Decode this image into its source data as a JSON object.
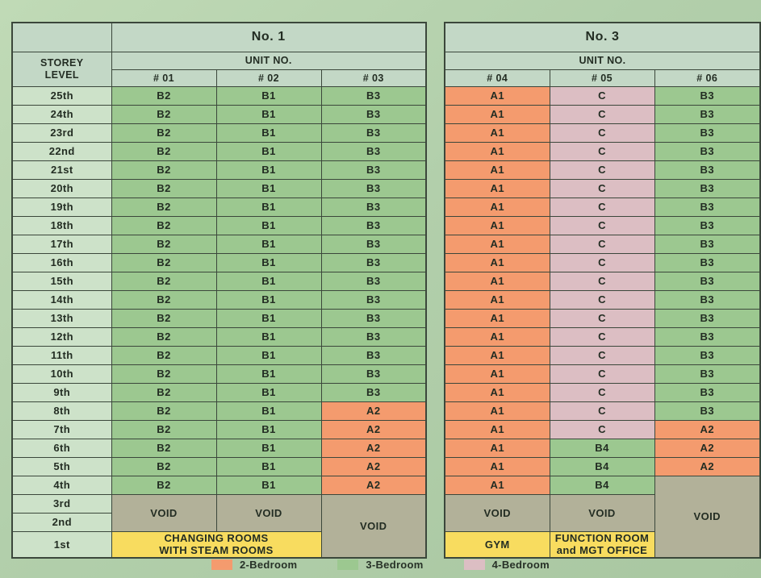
{
  "page": {
    "background": "#b2cfab",
    "border_color": "#3b473b",
    "text_color": "#232d23"
  },
  "colors": {
    "orange": "#f49b6e",
    "green": "#9cc890",
    "pink": "#dcbec3",
    "void": "#b2b199",
    "yellow": "#f8dc5f",
    "header": "#c3d8c6",
    "storey": "#cde2c9"
  },
  "tables": [
    {
      "title": "No. 1",
      "unit_no_label": "UNIT NO.",
      "storey_header": "STOREY\nLEVEL",
      "columns": [
        "# 01",
        "# 02",
        "# 03"
      ],
      "rows": [
        {
          "storey": "25th",
          "cells": [
            {
              "t": "B2",
              "c": "g"
            },
            {
              "t": "B1",
              "c": "g"
            },
            {
              "t": "B3",
              "c": "g"
            }
          ]
        },
        {
          "storey": "24th",
          "cells": [
            {
              "t": "B2",
              "c": "g"
            },
            {
              "t": "B1",
              "c": "g"
            },
            {
              "t": "B3",
              "c": "g"
            }
          ]
        },
        {
          "storey": "23rd",
          "cells": [
            {
              "t": "B2",
              "c": "g"
            },
            {
              "t": "B1",
              "c": "g"
            },
            {
              "t": "B3",
              "c": "g"
            }
          ]
        },
        {
          "storey": "22nd",
          "cells": [
            {
              "t": "B2",
              "c": "g"
            },
            {
              "t": "B1",
              "c": "g"
            },
            {
              "t": "B3",
              "c": "g"
            }
          ]
        },
        {
          "storey": "21st",
          "cells": [
            {
              "t": "B2",
              "c": "g"
            },
            {
              "t": "B1",
              "c": "g"
            },
            {
              "t": "B3",
              "c": "g"
            }
          ]
        },
        {
          "storey": "20th",
          "cells": [
            {
              "t": "B2",
              "c": "g"
            },
            {
              "t": "B1",
              "c": "g"
            },
            {
              "t": "B3",
              "c": "g"
            }
          ]
        },
        {
          "storey": "19th",
          "cells": [
            {
              "t": "B2",
              "c": "g"
            },
            {
              "t": "B1",
              "c": "g"
            },
            {
              "t": "B3",
              "c": "g"
            }
          ]
        },
        {
          "storey": "18th",
          "cells": [
            {
              "t": "B2",
              "c": "g"
            },
            {
              "t": "B1",
              "c": "g"
            },
            {
              "t": "B3",
              "c": "g"
            }
          ]
        },
        {
          "storey": "17th",
          "cells": [
            {
              "t": "B2",
              "c": "g"
            },
            {
              "t": "B1",
              "c": "g"
            },
            {
              "t": "B3",
              "c": "g"
            }
          ]
        },
        {
          "storey": "16th",
          "cells": [
            {
              "t": "B2",
              "c": "g"
            },
            {
              "t": "B1",
              "c": "g"
            },
            {
              "t": "B3",
              "c": "g"
            }
          ]
        },
        {
          "storey": "15th",
          "cells": [
            {
              "t": "B2",
              "c": "g"
            },
            {
              "t": "B1",
              "c": "g"
            },
            {
              "t": "B3",
              "c": "g"
            }
          ]
        },
        {
          "storey": "14th",
          "cells": [
            {
              "t": "B2",
              "c": "g"
            },
            {
              "t": "B1",
              "c": "g"
            },
            {
              "t": "B3",
              "c": "g"
            }
          ]
        },
        {
          "storey": "13th",
          "cells": [
            {
              "t": "B2",
              "c": "g"
            },
            {
              "t": "B1",
              "c": "g"
            },
            {
              "t": "B3",
              "c": "g"
            }
          ]
        },
        {
          "storey": "12th",
          "cells": [
            {
              "t": "B2",
              "c": "g"
            },
            {
              "t": "B1",
              "c": "g"
            },
            {
              "t": "B3",
              "c": "g"
            }
          ]
        },
        {
          "storey": "11th",
          "cells": [
            {
              "t": "B2",
              "c": "g"
            },
            {
              "t": "B1",
              "c": "g"
            },
            {
              "t": "B3",
              "c": "g"
            }
          ]
        },
        {
          "storey": "10th",
          "cells": [
            {
              "t": "B2",
              "c": "g"
            },
            {
              "t": "B1",
              "c": "g"
            },
            {
              "t": "B3",
              "c": "g"
            }
          ]
        },
        {
          "storey": "9th",
          "cells": [
            {
              "t": "B2",
              "c": "g"
            },
            {
              "t": "B1",
              "c": "g"
            },
            {
              "t": "B3",
              "c": "g"
            }
          ]
        },
        {
          "storey": "8th",
          "cells": [
            {
              "t": "B2",
              "c": "g"
            },
            {
              "t": "B1",
              "c": "g"
            },
            {
              "t": "A2",
              "c": "o"
            }
          ]
        },
        {
          "storey": "7th",
          "cells": [
            {
              "t": "B2",
              "c": "g"
            },
            {
              "t": "B1",
              "c": "g"
            },
            {
              "t": "A2",
              "c": "o"
            }
          ]
        },
        {
          "storey": "6th",
          "cells": [
            {
              "t": "B2",
              "c": "g"
            },
            {
              "t": "B1",
              "c": "g"
            },
            {
              "t": "A2",
              "c": "o"
            }
          ]
        },
        {
          "storey": "5th",
          "cells": [
            {
              "t": "B2",
              "c": "g"
            },
            {
              "t": "B1",
              "c": "g"
            },
            {
              "t": "A2",
              "c": "o"
            }
          ]
        },
        {
          "storey": "4th",
          "cells": [
            {
              "t": "B2",
              "c": "g"
            },
            {
              "t": "B1",
              "c": "g"
            },
            {
              "t": "A2",
              "c": "o"
            }
          ]
        },
        {
          "storey": "3rd",
          "cells": [
            {
              "t": "VOID",
              "c": "v",
              "rs": 2
            },
            {
              "t": "VOID",
              "c": "v",
              "rs": 2
            },
            {
              "t": "VOID",
              "c": "v",
              "rs": 3
            }
          ]
        },
        {
          "storey": "2nd",
          "cells": []
        },
        {
          "storey": "1st",
          "tall": true,
          "cells": [
            {
              "t": "CHANGING ROOMS\nWITH STEAM ROOMS",
              "c": "y",
              "cs": 2
            }
          ]
        }
      ]
    },
    {
      "title": "No. 3",
      "unit_no_label": "UNIT NO.",
      "columns": [
        "# 04",
        "# 05",
        "# 06"
      ],
      "rows": [
        {
          "cells": [
            {
              "t": "A1",
              "c": "o"
            },
            {
              "t": "C",
              "c": "p"
            },
            {
              "t": "B3",
              "c": "g"
            }
          ]
        },
        {
          "cells": [
            {
              "t": "A1",
              "c": "o"
            },
            {
              "t": "C",
              "c": "p"
            },
            {
              "t": "B3",
              "c": "g"
            }
          ]
        },
        {
          "cells": [
            {
              "t": "A1",
              "c": "o"
            },
            {
              "t": "C",
              "c": "p"
            },
            {
              "t": "B3",
              "c": "g"
            }
          ]
        },
        {
          "cells": [
            {
              "t": "A1",
              "c": "o"
            },
            {
              "t": "C",
              "c": "p"
            },
            {
              "t": "B3",
              "c": "g"
            }
          ]
        },
        {
          "cells": [
            {
              "t": "A1",
              "c": "o"
            },
            {
              "t": "C",
              "c": "p"
            },
            {
              "t": "B3",
              "c": "g"
            }
          ]
        },
        {
          "cells": [
            {
              "t": "A1",
              "c": "o"
            },
            {
              "t": "C",
              "c": "p"
            },
            {
              "t": "B3",
              "c": "g"
            }
          ]
        },
        {
          "cells": [
            {
              "t": "A1",
              "c": "o"
            },
            {
              "t": "C",
              "c": "p"
            },
            {
              "t": "B3",
              "c": "g"
            }
          ]
        },
        {
          "cells": [
            {
              "t": "A1",
              "c": "o"
            },
            {
              "t": "C",
              "c": "p"
            },
            {
              "t": "B3",
              "c": "g"
            }
          ]
        },
        {
          "cells": [
            {
              "t": "A1",
              "c": "o"
            },
            {
              "t": "C",
              "c": "p"
            },
            {
              "t": "B3",
              "c": "g"
            }
          ]
        },
        {
          "cells": [
            {
              "t": "A1",
              "c": "o"
            },
            {
              "t": "C",
              "c": "p"
            },
            {
              "t": "B3",
              "c": "g"
            }
          ]
        },
        {
          "cells": [
            {
              "t": "A1",
              "c": "o"
            },
            {
              "t": "C",
              "c": "p"
            },
            {
              "t": "B3",
              "c": "g"
            }
          ]
        },
        {
          "cells": [
            {
              "t": "A1",
              "c": "o"
            },
            {
              "t": "C",
              "c": "p"
            },
            {
              "t": "B3",
              "c": "g"
            }
          ]
        },
        {
          "cells": [
            {
              "t": "A1",
              "c": "o"
            },
            {
              "t": "C",
              "c": "p"
            },
            {
              "t": "B3",
              "c": "g"
            }
          ]
        },
        {
          "cells": [
            {
              "t": "A1",
              "c": "o"
            },
            {
              "t": "C",
              "c": "p"
            },
            {
              "t": "B3",
              "c": "g"
            }
          ]
        },
        {
          "cells": [
            {
              "t": "A1",
              "c": "o"
            },
            {
              "t": "C",
              "c": "p"
            },
            {
              "t": "B3",
              "c": "g"
            }
          ]
        },
        {
          "cells": [
            {
              "t": "A1",
              "c": "o"
            },
            {
              "t": "C",
              "c": "p"
            },
            {
              "t": "B3",
              "c": "g"
            }
          ]
        },
        {
          "cells": [
            {
              "t": "A1",
              "c": "o"
            },
            {
              "t": "C",
              "c": "p"
            },
            {
              "t": "B3",
              "c": "g"
            }
          ]
        },
        {
          "cells": [
            {
              "t": "A1",
              "c": "o"
            },
            {
              "t": "C",
              "c": "p"
            },
            {
              "t": "B3",
              "c": "g"
            }
          ]
        },
        {
          "cells": [
            {
              "t": "A1",
              "c": "o"
            },
            {
              "t": "C",
              "c": "p"
            },
            {
              "t": "A2",
              "c": "o"
            }
          ]
        },
        {
          "cells": [
            {
              "t": "A1",
              "c": "o"
            },
            {
              "t": "B4",
              "c": "g"
            },
            {
              "t": "A2",
              "c": "o"
            }
          ]
        },
        {
          "cells": [
            {
              "t": "A1",
              "c": "o"
            },
            {
              "t": "B4",
              "c": "g"
            },
            {
              "t": "A2",
              "c": "o"
            }
          ]
        },
        {
          "cells": [
            {
              "t": "A1",
              "c": "o"
            },
            {
              "t": "B4",
              "c": "g"
            },
            {
              "t": "VOID",
              "c": "v",
              "rs": 4
            }
          ]
        },
        {
          "cells": [
            {
              "t": "VOID",
              "c": "v",
              "rs": 2
            },
            {
              "t": "VOID",
              "c": "v",
              "rs": 2
            }
          ]
        },
        {
          "cells": []
        },
        {
          "tall": true,
          "cells": [
            {
              "t": "GYM",
              "c": "y"
            },
            {
              "t": "FUNCTION ROOM\nand MGT OFFICE",
              "c": "y"
            }
          ]
        }
      ]
    }
  ],
  "legend": {
    "items": [
      {
        "label": "2-Bedroom",
        "color_key": "orange"
      },
      {
        "label": "3-Bedroom",
        "color_key": "green"
      },
      {
        "label": "4-Bedroom",
        "color_key": "pink"
      }
    ]
  }
}
